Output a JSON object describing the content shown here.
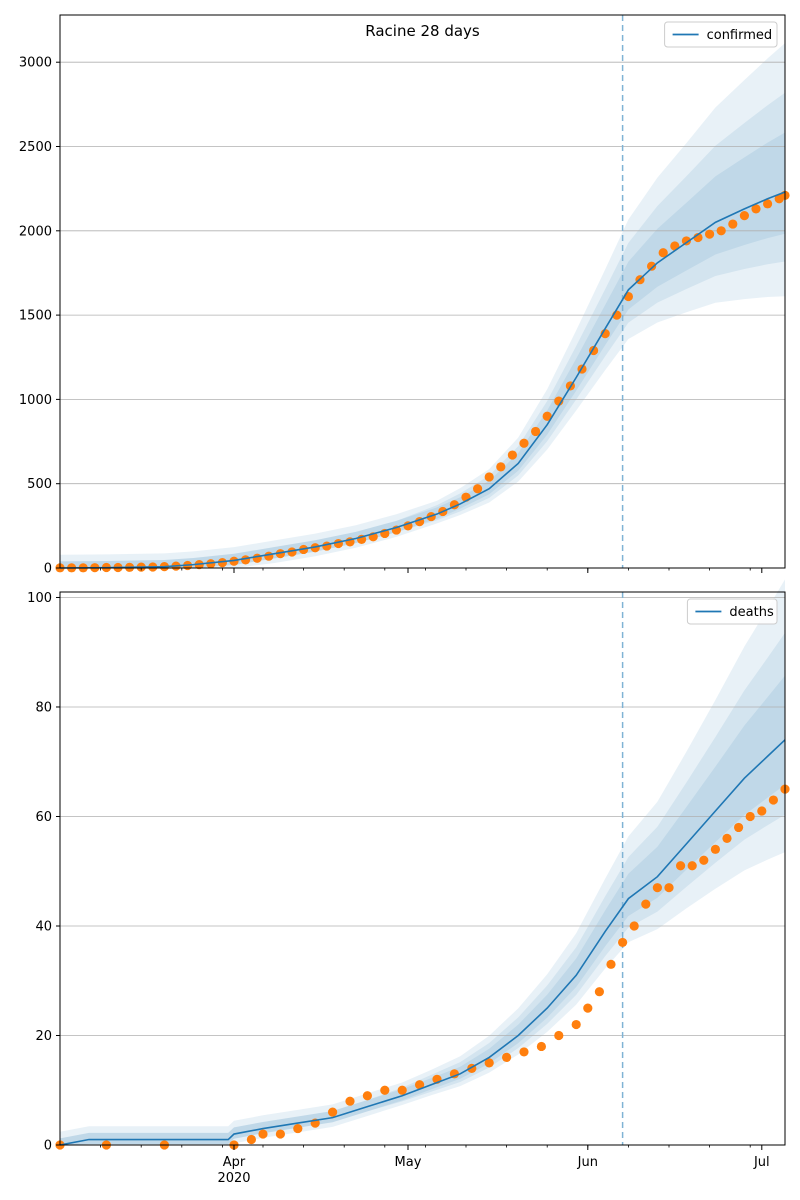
{
  "chart_data": [
    {
      "type": "line",
      "title": "Racine 28 days",
      "xlabel": "",
      "ylabel": "",
      "x_range": [
        "2020-03-02",
        "2020-07-05"
      ],
      "ylim": [
        0,
        3280
      ],
      "yticks": [
        0,
        500,
        1000,
        1500,
        2000,
        2500,
        3000
      ],
      "xticks": [
        {
          "date": "2020-04-01",
          "label": "Apr",
          "sublabel": "2020"
        },
        {
          "date": "2020-05-01",
          "label": "May",
          "sublabel": ""
        },
        {
          "date": "2020-06-01",
          "label": "Jun",
          "sublabel": ""
        },
        {
          "date": "2020-07-01",
          "label": "Jul",
          "sublabel": ""
        }
      ],
      "grid": "y",
      "legend": {
        "placement": "top-right",
        "entries": [
          "confirmed"
        ]
      },
      "forecast_start": "2020-06-07",
      "colors": {
        "line": "#1f77b4",
        "points": "#ff7f0e",
        "band": "#1f77b4",
        "vline": "#7fb3d5"
      },
      "series": [
        {
          "name": "confirmed",
          "kind": "line",
          "points": [
            [
              "2020-03-02",
              0
            ],
            [
              "2020-03-10",
              2
            ],
            [
              "2020-03-20",
              8
            ],
            [
              "2020-03-25",
              20
            ],
            [
              "2020-04-01",
              45
            ],
            [
              "2020-04-08",
              85
            ],
            [
              "2020-04-15",
              125
            ],
            [
              "2020-04-22",
              175
            ],
            [
              "2020-04-29",
              240
            ],
            [
              "2020-05-06",
              320
            ],
            [
              "2020-05-10",
              380
            ],
            [
              "2020-05-15",
              470
            ],
            [
              "2020-05-20",
              620
            ],
            [
              "2020-05-25",
              850
            ],
            [
              "2020-05-30",
              1130
            ],
            [
              "2020-06-04",
              1420
            ],
            [
              "2020-06-08",
              1650
            ],
            [
              "2020-06-13",
              1810
            ],
            [
              "2020-06-18",
              1930
            ],
            [
              "2020-06-23",
              2050
            ],
            [
              "2020-06-28",
              2130
            ],
            [
              "2020-07-02",
              2190
            ],
            [
              "2020-07-05",
              2230
            ]
          ]
        },
        {
          "name": "",
          "kind": "points",
          "points": [
            [
              "2020-03-02",
              1
            ],
            [
              "2020-03-04",
              1
            ],
            [
              "2020-03-06",
              1
            ],
            [
              "2020-03-08",
              2
            ],
            [
              "2020-03-10",
              3
            ],
            [
              "2020-03-12",
              3
            ],
            [
              "2020-03-14",
              4
            ],
            [
              "2020-03-16",
              5
            ],
            [
              "2020-03-18",
              6
            ],
            [
              "2020-03-20",
              8
            ],
            [
              "2020-03-22",
              11
            ],
            [
              "2020-03-24",
              15
            ],
            [
              "2020-03-26",
              20
            ],
            [
              "2020-03-28",
              25
            ],
            [
              "2020-03-30",
              32
            ],
            [
              "2020-04-01",
              40
            ],
            [
              "2020-04-03",
              48
            ],
            [
              "2020-04-05",
              58
            ],
            [
              "2020-04-07",
              70
            ],
            [
              "2020-04-09",
              85
            ],
            [
              "2020-04-11",
              95
            ],
            [
              "2020-04-13",
              110
            ],
            [
              "2020-04-15",
              120
            ],
            [
              "2020-04-17",
              130
            ],
            [
              "2020-04-19",
              145
            ],
            [
              "2020-04-21",
              155
            ],
            [
              "2020-04-23",
              170
            ],
            [
              "2020-04-25",
              185
            ],
            [
              "2020-04-27",
              205
            ],
            [
              "2020-04-29",
              225
            ],
            [
              "2020-05-01",
              250
            ],
            [
              "2020-05-03",
              275
            ],
            [
              "2020-05-05",
              305
            ],
            [
              "2020-05-07",
              335
            ],
            [
              "2020-05-09",
              375
            ],
            [
              "2020-05-11",
              420
            ],
            [
              "2020-05-13",
              470
            ],
            [
              "2020-05-15",
              540
            ],
            [
              "2020-05-17",
              600
            ],
            [
              "2020-05-19",
              670
            ],
            [
              "2020-05-21",
              740
            ],
            [
              "2020-05-23",
              810
            ],
            [
              "2020-05-25",
              900
            ],
            [
              "2020-05-27",
              990
            ],
            [
              "2020-05-29",
              1080
            ],
            [
              "2020-05-31",
              1180
            ],
            [
              "2020-06-02",
              1290
            ],
            [
              "2020-06-04",
              1390
            ],
            [
              "2020-06-06",
              1500
            ],
            [
              "2020-06-08",
              1610
            ],
            [
              "2020-06-10",
              1710
            ],
            [
              "2020-06-12",
              1790
            ],
            [
              "2020-06-14",
              1870
            ],
            [
              "2020-06-16",
              1910
            ],
            [
              "2020-06-18",
              1940
            ],
            [
              "2020-06-20",
              1960
            ],
            [
              "2020-06-22",
              1980
            ],
            [
              "2020-06-24",
              2000
            ],
            [
              "2020-06-26",
              2040
            ],
            [
              "2020-06-28",
              2090
            ],
            [
              "2020-06-30",
              2130
            ],
            [
              "2020-07-02",
              2160
            ],
            [
              "2020-07-04",
              2190
            ],
            [
              "2020-07-05",
              2210
            ]
          ]
        }
      ]
    },
    {
      "type": "line",
      "title": "",
      "xlabel": "",
      "ylabel": "",
      "x_range": [
        "2020-03-02",
        "2020-07-05"
      ],
      "ylim": [
        0,
        101
      ],
      "yticks": [
        0,
        20,
        40,
        60,
        80,
        100
      ],
      "xticks": [
        {
          "date": "2020-04-01",
          "label": "Apr",
          "sublabel": "2020"
        },
        {
          "date": "2020-05-01",
          "label": "May",
          "sublabel": ""
        },
        {
          "date": "2020-06-01",
          "label": "Jun",
          "sublabel": ""
        },
        {
          "date": "2020-07-01",
          "label": "Jul",
          "sublabel": ""
        }
      ],
      "grid": "y",
      "legend": {
        "placement": "top-right",
        "entries": [
          "deaths"
        ]
      },
      "forecast_start": "2020-06-07",
      "colors": {
        "line": "#1f77b4",
        "points": "#ff7f0e",
        "band": "#1f77b4",
        "vline": "#7fb3d5"
      },
      "series": [
        {
          "name": "deaths",
          "kind": "line",
          "points": [
            [
              "2020-03-02",
              0
            ],
            [
              "2020-03-07",
              1
            ],
            [
              "2020-03-31",
              1
            ],
            [
              "2020-04-01",
              2
            ],
            [
              "2020-04-06",
              3
            ],
            [
              "2020-04-12",
              4
            ],
            [
              "2020-04-18",
              5
            ],
            [
              "2020-04-24",
              7
            ],
            [
              "2020-04-30",
              9
            ],
            [
              "2020-05-05",
              11
            ],
            [
              "2020-05-10",
              13
            ],
            [
              "2020-05-15",
              16
            ],
            [
              "2020-05-20",
              20
            ],
            [
              "2020-05-25",
              25
            ],
            [
              "2020-05-30",
              31
            ],
            [
              "2020-06-04",
              39
            ],
            [
              "2020-06-08",
              45
            ],
            [
              "2020-06-13",
              49
            ],
            [
              "2020-06-18",
              55
            ],
            [
              "2020-06-23",
              61
            ],
            [
              "2020-06-28",
              67
            ],
            [
              "2020-07-02",
              71
            ],
            [
              "2020-07-05",
              74
            ]
          ]
        },
        {
          "name": "",
          "kind": "points",
          "points": [
            [
              "2020-03-02",
              0
            ],
            [
              "2020-03-10",
              0
            ],
            [
              "2020-03-20",
              0
            ],
            [
              "2020-04-01",
              0
            ],
            [
              "2020-04-04",
              1
            ],
            [
              "2020-04-06",
              2
            ],
            [
              "2020-04-09",
              2
            ],
            [
              "2020-04-12",
              3
            ],
            [
              "2020-04-15",
              4
            ],
            [
              "2020-04-18",
              6
            ],
            [
              "2020-04-21",
              8
            ],
            [
              "2020-04-24",
              9
            ],
            [
              "2020-04-27",
              10
            ],
            [
              "2020-04-30",
              10
            ],
            [
              "2020-05-03",
              11
            ],
            [
              "2020-05-06",
              12
            ],
            [
              "2020-05-09",
              13
            ],
            [
              "2020-05-12",
              14
            ],
            [
              "2020-05-15",
              15
            ],
            [
              "2020-05-18",
              16
            ],
            [
              "2020-05-21",
              17
            ],
            [
              "2020-05-24",
              18
            ],
            [
              "2020-05-27",
              20
            ],
            [
              "2020-05-30",
              22
            ],
            [
              "2020-06-01",
              25
            ],
            [
              "2020-06-03",
              28
            ],
            [
              "2020-06-05",
              33
            ],
            [
              "2020-06-07",
              37
            ],
            [
              "2020-06-09",
              40
            ],
            [
              "2020-06-11",
              44
            ],
            [
              "2020-06-13",
              47
            ],
            [
              "2020-06-15",
              47
            ],
            [
              "2020-06-17",
              51
            ],
            [
              "2020-06-19",
              51
            ],
            [
              "2020-06-21",
              52
            ],
            [
              "2020-06-23",
              54
            ],
            [
              "2020-06-25",
              56
            ],
            [
              "2020-06-27",
              58
            ],
            [
              "2020-06-29",
              60
            ],
            [
              "2020-07-01",
              61
            ],
            [
              "2020-07-03",
              63
            ],
            [
              "2020-07-05",
              65
            ]
          ]
        }
      ]
    }
  ]
}
